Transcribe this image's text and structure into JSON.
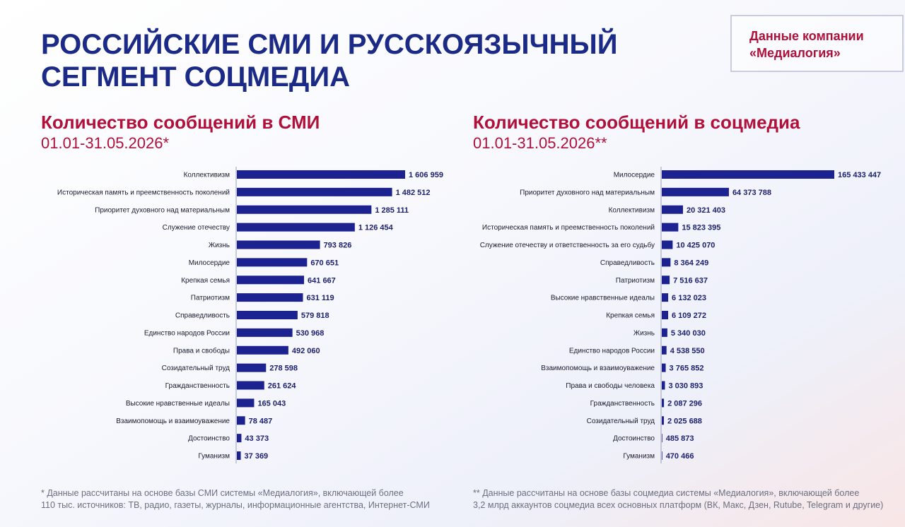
{
  "header": {
    "title_lines": [
      "РОССИЙСКИЕ СМИ И РУССКОЯЗЫЧНЫЙ",
      "СЕГМЕНТ СОЦМЕДИА"
    ],
    "badge_lines": [
      "Данные компании",
      "«Медиалогия»"
    ]
  },
  "chart_data": [
    {
      "type": "bar",
      "orientation": "horizontal",
      "title": "Количество сообщений в СМИ",
      "subtitle": "01.01-31.05.2026*",
      "color": "#1c2290",
      "categories": [
        "Коллективизм",
        "Историческая память и преемственность поколений",
        "Приоритет духовного над материальным",
        "Служение отечеству",
        "Жизнь",
        "Милосердие",
        "Крепкая семья",
        "Патриотизм",
        "Справедливость",
        "Единство народов России",
        "Права и свободы",
        "Созидательный труд",
        "Гражданственность",
        "Высокие нравственные идеалы",
        "Взаимопомощь и взаимоуважение",
        "Достоинство",
        "Гуманизм"
      ],
      "values": [
        1606959,
        1482512,
        1285111,
        1126454,
        793826,
        670651,
        641667,
        631119,
        579818,
        530968,
        492060,
        278598,
        261624,
        165043,
        78487,
        43373,
        37369
      ],
      "value_labels": [
        "1 606 959",
        "1 482 512",
        "1 285 111",
        "1 126 454",
        "793 826",
        "670 651",
        "641 667",
        "631 119",
        "579 818",
        "530 968",
        "492 060",
        "278 598",
        "261 624",
        "165 043",
        "78 487",
        "43 373",
        "37 369"
      ]
    },
    {
      "type": "bar",
      "orientation": "horizontal",
      "title": "Количество сообщений в соцмедиа",
      "subtitle": "01.01-31.05.2026**",
      "color": "#1c2290",
      "categories": [
        "Милосердие",
        "Приоритет духовного над материальным",
        "Коллективизм",
        "Историческая память и преемственность поколений",
        "Служение отечеству и ответственность за его судьбу",
        "Справедливость",
        "Патриотизм",
        "Высокие нравственные идеалы",
        "Крепкая семья",
        "Жизнь",
        "Единство народов России",
        "Взаимопомощь и взаимоуважение",
        "Права и свободы человека",
        "Гражданственность",
        "Созидательный труд",
        "Достоинство",
        "Гуманизм"
      ],
      "values": [
        165433447,
        64373788,
        20321403,
        15823395,
        10425070,
        8364249,
        7516637,
        6132023,
        6109272,
        5340030,
        4538550,
        3765852,
        3030893,
        2087296,
        2025688,
        485873,
        470466
      ],
      "value_labels": [
        "165 433 447",
        "64 373 788",
        "20 321 403",
        "15 823 395",
        "10 425 070",
        "8 364 249",
        "7 516 637",
        "6 132 023",
        "6 109 272",
        "5 340 030",
        "4 538 550",
        "3 765 852",
        "3 030 893",
        "2 087 296",
        "2 025 688",
        "485 873",
        "470 466"
      ]
    }
  ],
  "footnotes": [
    [
      "* Данные рассчитаны на основе базы СМИ системы «Медиалогия», включающей более",
      "110 тыс. источников: ТВ, радио, газеты, журналы, информационные агентства, Интернет-СМИ"
    ],
    [
      "** Данные рассчитаны на основе базы соцмедиа системы «Медиалогия», включающей более",
      "3,2 млрд аккаунтов соцмедиа всех основных платформ (ВК, Макс, Дзен, Rutube, Telegram и другие)"
    ]
  ]
}
